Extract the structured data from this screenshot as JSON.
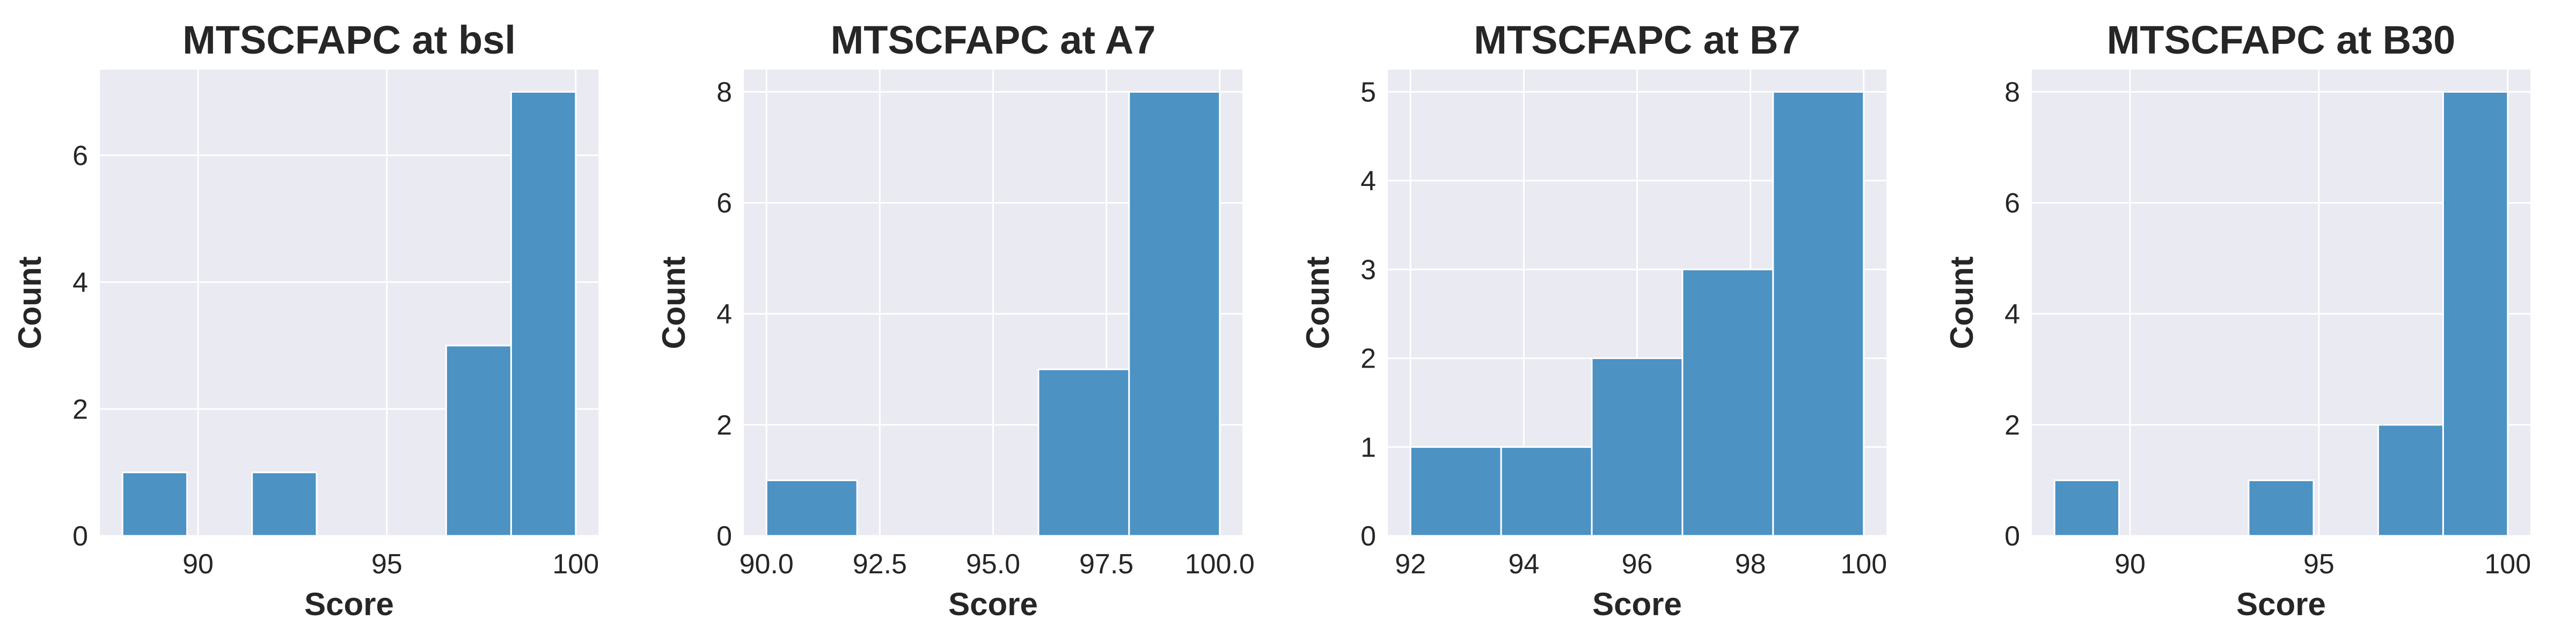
{
  "chart_data": [
    {
      "type": "bar",
      "title": "MTSCFAPC at bsl",
      "xlabel": "Score",
      "ylabel": "Count",
      "xlim": [
        87.4,
        100.6
      ],
      "ylim": [
        0,
        7.35
      ],
      "xticks": [
        90,
        95,
        100
      ],
      "xtick_labels": [
        "90",
        "95",
        "100"
      ],
      "yticks": [
        0,
        2,
        4,
        6
      ],
      "yticks_labels": [
        "0",
        "2",
        "4",
        "6"
      ],
      "bins": [
        {
          "x0": 88.0,
          "x1": 89.71,
          "count": 1
        },
        {
          "x0": 89.71,
          "x1": 91.43,
          "count": 0
        },
        {
          "x0": 91.43,
          "x1": 93.14,
          "count": 1
        },
        {
          "x0": 93.14,
          "x1": 94.86,
          "count": 0
        },
        {
          "x0": 94.86,
          "x1": 96.57,
          "count": 0
        },
        {
          "x0": 96.57,
          "x1": 98.29,
          "count": 3
        },
        {
          "x0": 98.29,
          "x1": 100.0,
          "count": 7
        }
      ],
      "grid": true
    },
    {
      "type": "bar",
      "title": "MTSCFAPC at A7",
      "xlabel": "Score",
      "ylabel": "Count",
      "xlim": [
        89.5,
        100.5
      ],
      "ylim": [
        0,
        8.4
      ],
      "xticks": [
        90.0,
        92.5,
        95.0,
        97.5,
        100.0
      ],
      "xtick_labels": [
        "90.0",
        "92.5",
        "95.0",
        "97.5",
        "100.0"
      ],
      "yticks": [
        0,
        2,
        4,
        6,
        8
      ],
      "yticks_labels": [
        "0",
        "2",
        "4",
        "6",
        "8"
      ],
      "bins": [
        {
          "x0": 90.0,
          "x1": 92.0,
          "count": 1
        },
        {
          "x0": 92.0,
          "x1": 94.0,
          "count": 0
        },
        {
          "x0": 94.0,
          "x1": 96.0,
          "count": 0
        },
        {
          "x0": 96.0,
          "x1": 98.0,
          "count": 3
        },
        {
          "x0": 98.0,
          "x1": 100.0,
          "count": 8
        }
      ],
      "grid": true
    },
    {
      "type": "bar",
      "title": "MTSCFAPC at B7",
      "xlabel": "Score",
      "ylabel": "Count",
      "xlim": [
        91.6,
        100.4
      ],
      "ylim": [
        0,
        5.25
      ],
      "xticks": [
        92,
        94,
        96,
        98,
        100
      ],
      "xtick_labels": [
        "92",
        "94",
        "96",
        "98",
        "100"
      ],
      "yticks": [
        0,
        1,
        2,
        3,
        4,
        5
      ],
      "yticks_labels": [
        "0",
        "1",
        "2",
        "3",
        "4",
        "5"
      ],
      "bins": [
        {
          "x0": 92.0,
          "x1": 93.6,
          "count": 1
        },
        {
          "x0": 93.6,
          "x1": 95.2,
          "count": 1
        },
        {
          "x0": 95.2,
          "x1": 96.8,
          "count": 2
        },
        {
          "x0": 96.8,
          "x1": 98.4,
          "count": 3
        },
        {
          "x0": 98.4,
          "x1": 100.0,
          "count": 5
        }
      ],
      "grid": true
    },
    {
      "type": "bar",
      "title": "MTSCFAPC at B30",
      "xlabel": "Score",
      "ylabel": "Count",
      "xlim": [
        87.4,
        100.6
      ],
      "ylim": [
        0,
        8.4
      ],
      "xticks": [
        90,
        95,
        100
      ],
      "xtick_labels": [
        "90",
        "95",
        "100"
      ],
      "yticks": [
        0,
        2,
        4,
        6,
        8
      ],
      "yticks_labels": [
        "0",
        "2",
        "4",
        "6",
        "8"
      ],
      "bins": [
        {
          "x0": 88.0,
          "x1": 89.71,
          "count": 1
        },
        {
          "x0": 89.71,
          "x1": 91.43,
          "count": 0
        },
        {
          "x0": 91.43,
          "x1": 93.14,
          "count": 0
        },
        {
          "x0": 93.14,
          "x1": 94.86,
          "count": 1
        },
        {
          "x0": 94.86,
          "x1": 96.57,
          "count": 0
        },
        {
          "x0": 96.57,
          "x1": 98.29,
          "count": 2
        },
        {
          "x0": 98.29,
          "x1": 100.0,
          "count": 8
        }
      ],
      "grid": true
    }
  ],
  "colors": {
    "bar": "#4c92c3",
    "bar_edge": "#ffffff",
    "plot_bg": "#eaeaf2",
    "grid": "#ffffff",
    "text": "#262626"
  }
}
